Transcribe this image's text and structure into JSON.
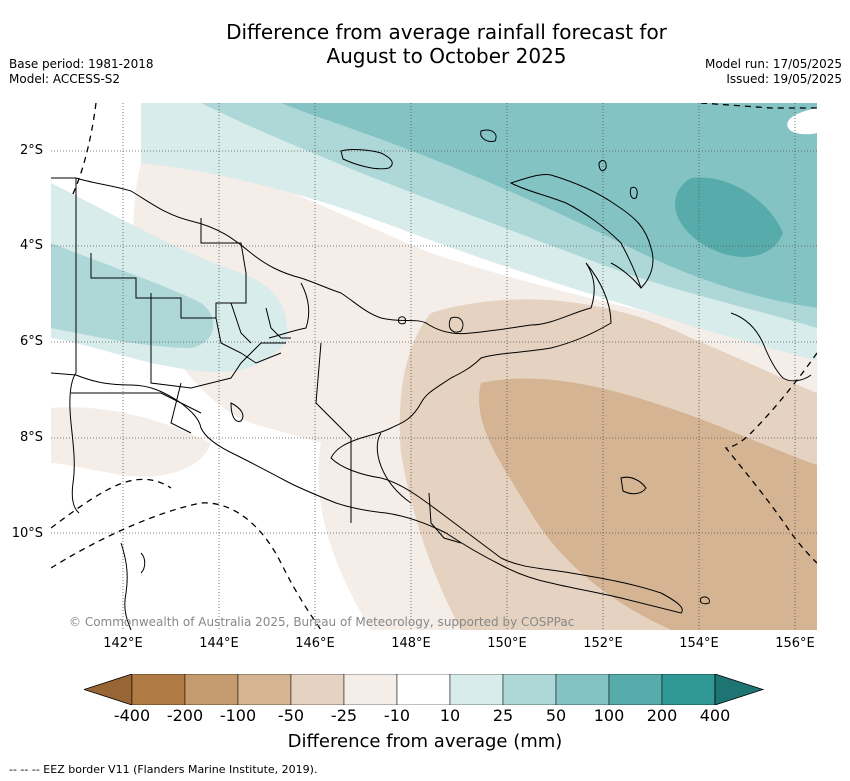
{
  "title_line1": "Difference from average rainfall forecast for",
  "title_line2": "August to October 2025",
  "base_period": "Base period: 1981-2018",
  "model": "Model: ACCESS-S2",
  "model_run": "Model run: 17/05/2025",
  "issued": "Issued: 19/05/2025",
  "copyright": "© Commonwealth of Australia 2025, Bureau of Meteorology, supported by COSPPac",
  "lat_labels": [
    "2°S",
    "4°S",
    "6°S",
    "8°S",
    "10°S"
  ],
  "lon_labels": [
    "142°E",
    "144°E",
    "146°E",
    "148°E",
    "150°E",
    "152°E",
    "154°E",
    "156°E"
  ],
  "colorbar": {
    "ticks": [
      "-400",
      "-200",
      "-100",
      "-50",
      "-25",
      "-10",
      "10",
      "25",
      "50",
      "100",
      "200",
      "400"
    ],
    "colors": [
      "#986534",
      "#b07a44",
      "#c49a6e",
      "#d4b492",
      "#e6d2c0",
      "#f4ede8",
      "#ffffff",
      "#d9ecec",
      "#aed8d8",
      "#84c3c3",
      "#58abab",
      "#2f9896",
      "#1d7472"
    ],
    "title": "Difference from average (mm)"
  },
  "footer": "-- -- -- EEZ border V11 (Flanders Marine Institute, 2019)."
}
